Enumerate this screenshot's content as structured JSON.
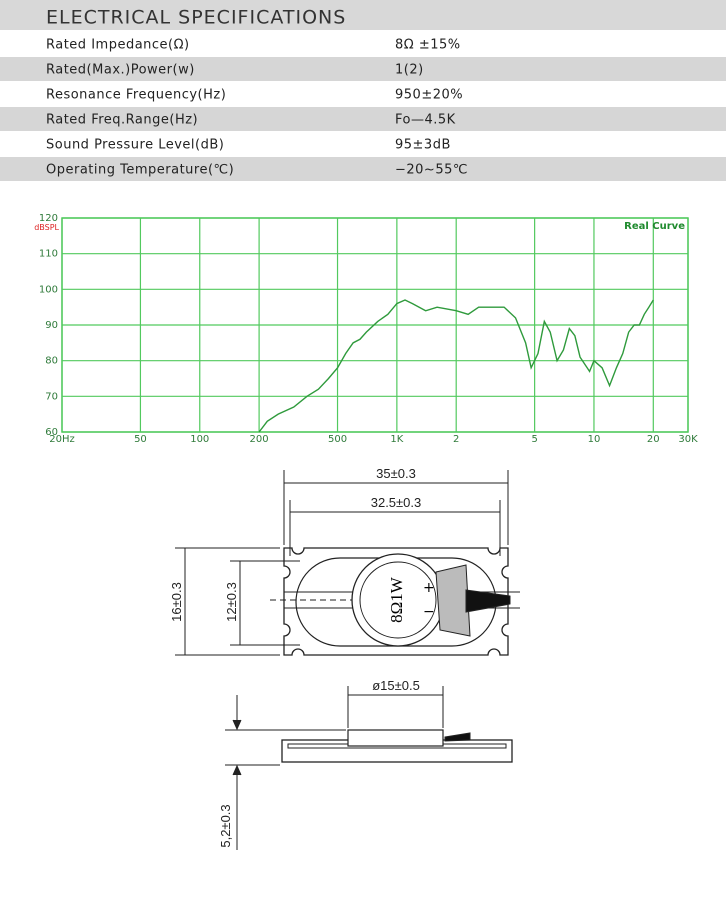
{
  "header": {
    "title": "ELECTRICAL SPECIFICATIONS"
  },
  "table": {
    "rows": [
      [
        "Rated Impedance(Ω)",
        "8Ω ±15%"
      ],
      [
        "Rated(Max.)Power(w)",
        "1(2)"
      ],
      [
        "Resonance Frequency(Hz)",
        "950±20%"
      ],
      [
        "Rated Freq.Range(Hz)",
        "Fo—4.5K"
      ],
      [
        "Sound Pressure Level(dB)",
        "95±3dB"
      ],
      [
        "Operating Temperature(℃)",
        "−20~55℃"
      ]
    ]
  },
  "chart_data": {
    "type": "line",
    "y_label": "dBSPL",
    "annotation": "Real Curve",
    "x": [
      200,
      220,
      250,
      300,
      350,
      400,
      450,
      500,
      550,
      600,
      650,
      700,
      800,
      900,
      1000,
      1100,
      1200,
      1400,
      1600,
      2000,
      2300,
      2600,
      3000,
      3500,
      4000,
      4500,
      4800,
      5200,
      5600,
      6000,
      6500,
      7000,
      7500,
      8000,
      8500,
      9500,
      10000,
      11000,
      12000,
      13000,
      14000,
      15000,
      16000,
      17000,
      18000,
      19000,
      20000
    ],
    "series": [
      {
        "color": "#2f9a3c",
        "values": [
          60,
          63,
          65,
          67,
          70,
          72,
          75,
          78,
          82,
          85,
          86,
          88,
          91,
          93,
          96,
          97,
          96,
          94,
          95,
          94,
          93,
          95,
          95,
          95,
          92,
          85,
          78,
          82,
          91,
          88,
          80,
          83,
          89,
          87,
          81,
          77,
          80,
          78,
          73,
          78,
          82,
          88,
          90,
          90,
          93,
          95,
          97
        ]
      }
    ],
    "xlim": [
      20,
      30000
    ],
    "ylim": [
      60,
      120
    ],
    "x_log": true,
    "xticks": [
      {
        "value": 20,
        "label": "20Hz"
      },
      50,
      100,
      200,
      500,
      {
        "value": 1000,
        "label": "1K"
      },
      {
        "value": 2000,
        "label": "2"
      },
      {
        "value": 5000,
        "label": "5"
      },
      {
        "value": 10000,
        "label": "10"
      },
      {
        "value": 20000,
        "label": "20"
      },
      {
        "value": 30000,
        "label": "30K"
      }
    ],
    "yticks": [
      60,
      70,
      80,
      90,
      100,
      110,
      120
    ],
    "grid": true,
    "grid_color": "#52c95e"
  },
  "drawing": {
    "outer_width": "35±0.3",
    "inner_width": "32.5±0.3",
    "outer_height": "16±0.3",
    "inner_height": "12±0.3",
    "marking": "8Ω1W",
    "minus": "−",
    "plus": "+",
    "diameter": "ø15±0.5",
    "thickness": "5,2±0.3"
  }
}
